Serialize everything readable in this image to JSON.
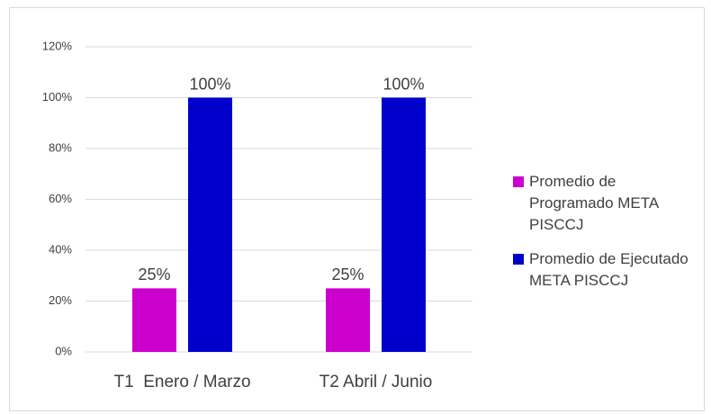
{
  "chart_data": {
    "type": "bar",
    "categories": [
      "T1  Enero / Marzo",
      "T2 Abril / Junio"
    ],
    "series": [
      {
        "name": "Promedio de Programado META PISCCJ",
        "color": "#cc00cc",
        "values": [
          25,
          25
        ],
        "value_labels": [
          "25%",
          "25%"
        ]
      },
      {
        "name": "Promedio de Ejecutado META PISCCJ",
        "color": "#0000cc",
        "values": [
          100,
          100
        ],
        "value_labels": [
          "100%",
          "100%"
        ]
      }
    ],
    "ylim": [
      0,
      120
    ],
    "yticks": [
      {
        "value": 0,
        "label": "0%"
      },
      {
        "value": 20,
        "label": "20%"
      },
      {
        "value": 40,
        "label": "40%"
      },
      {
        "value": 60,
        "label": "60%"
      },
      {
        "value": 80,
        "label": "80%"
      },
      {
        "value": 100,
        "label": "100%"
      },
      {
        "value": 120,
        "label": "120%"
      }
    ],
    "grid": true,
    "legend": "right"
  }
}
